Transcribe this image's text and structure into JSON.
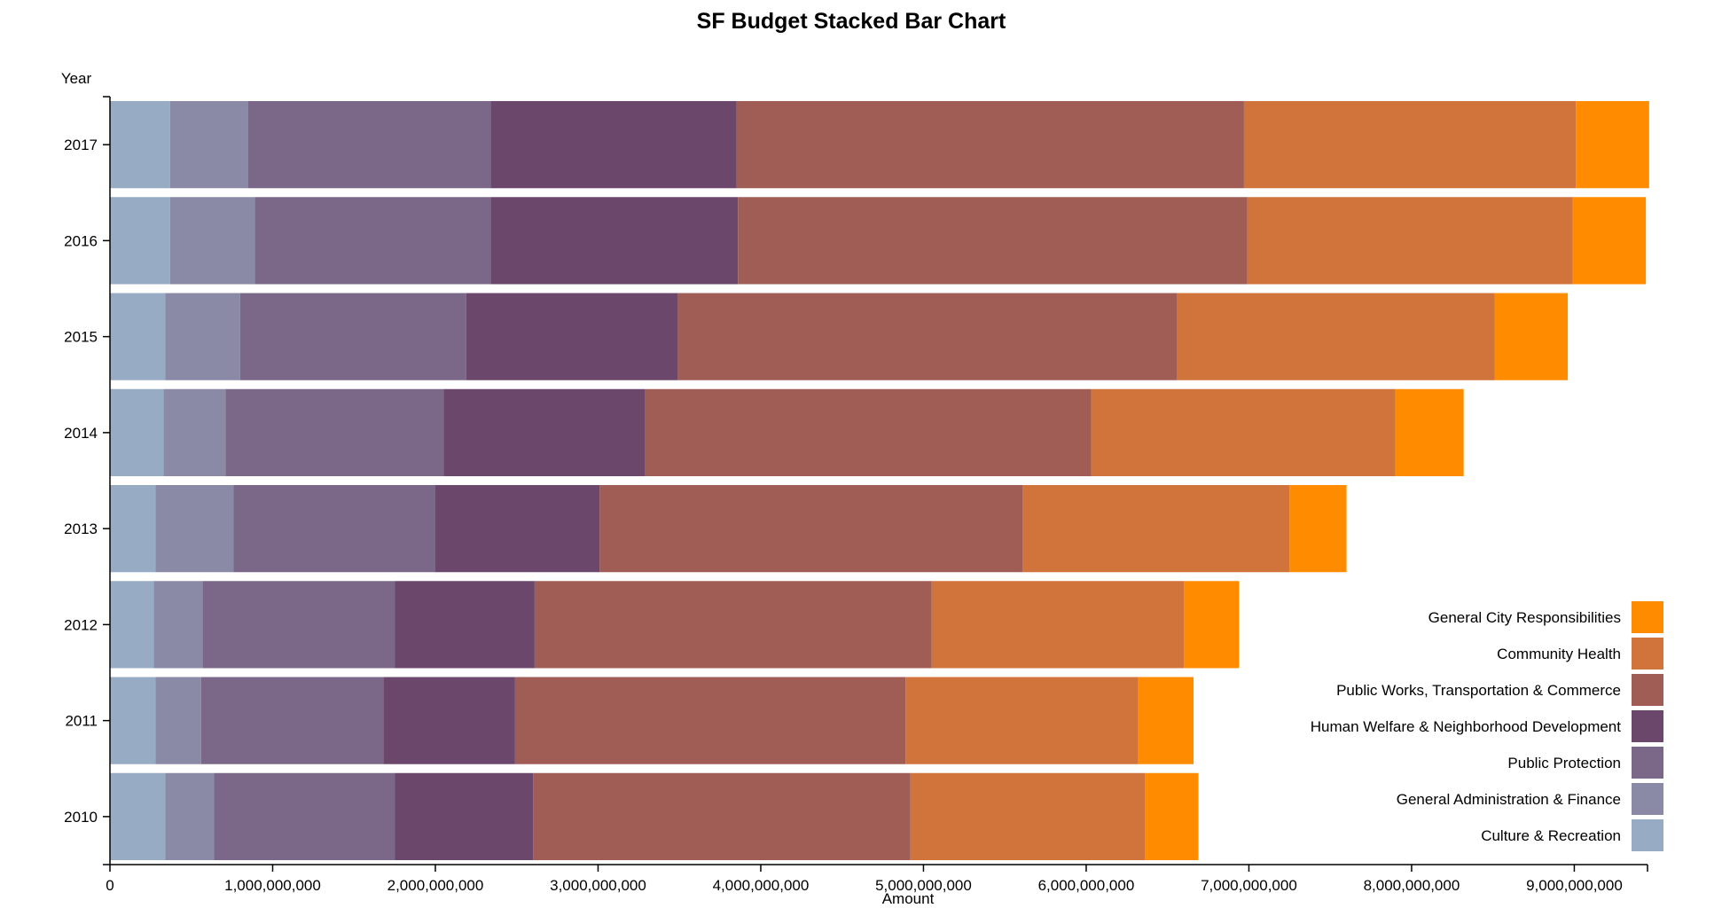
{
  "chart_data": {
    "type": "bar",
    "orientation": "horizontal",
    "stacked": true,
    "title": "SF Budget Stacked Bar Chart",
    "xlabel": "Amount",
    "ylabel": "Year",
    "xlim": [
      0,
      9450000000
    ],
    "x_ticks": [
      0,
      1000000000,
      2000000000,
      3000000000,
      4000000000,
      5000000000,
      6000000000,
      7000000000,
      8000000000,
      9000000000
    ],
    "x_tick_labels": [
      "0",
      "1,000,000,000",
      "2,000,000,000",
      "3,000,000,000",
      "4,000,000,000",
      "5,000,000,000",
      "6,000,000,000",
      "7,000,000,000",
      "8,000,000,000",
      "9,000,000,000"
    ],
    "categories": [
      "2017",
      "2016",
      "2015",
      "2014",
      "2013",
      "2012",
      "2011",
      "2010"
    ],
    "legend_position": "bottom-right",
    "series": [
      {
        "name": "Culture & Recreation",
        "color": "#98abc5",
        "values": [
          370000000,
          370000000,
          340000000,
          330000000,
          280000000,
          270000000,
          280000000,
          340000000
        ]
      },
      {
        "name": "General Administration & Finance",
        "color": "#8a89a6",
        "values": [
          480000000,
          520000000,
          460000000,
          380000000,
          480000000,
          300000000,
          280000000,
          300000000
        ]
      },
      {
        "name": "Public Protection",
        "color": "#7b6888",
        "values": [
          1490000000,
          1450000000,
          1390000000,
          1340000000,
          1240000000,
          1180000000,
          1120000000,
          1110000000
        ]
      },
      {
        "name": "Human Welfare & Neighborhood Development",
        "color": "#6b486b",
        "values": [
          1510000000,
          1520000000,
          1300000000,
          1240000000,
          1010000000,
          860000000,
          810000000,
          850000000
        ]
      },
      {
        "name": "Public Works, Transportation & Commerce",
        "color": "#a05d56",
        "values": [
          3120000000,
          3130000000,
          3070000000,
          2740000000,
          2600000000,
          2440000000,
          2400000000,
          2320000000
        ]
      },
      {
        "name": "Community Health",
        "color": "#d0743c",
        "values": [
          2040000000,
          2000000000,
          1950000000,
          1870000000,
          1640000000,
          1550000000,
          1430000000,
          1440000000
        ]
      },
      {
        "name": "General City Responsibilities",
        "color": "#ff8c00",
        "values": [
          450000000,
          450000000,
          450000000,
          420000000,
          350000000,
          340000000,
          340000000,
          330000000
        ]
      }
    ]
  }
}
